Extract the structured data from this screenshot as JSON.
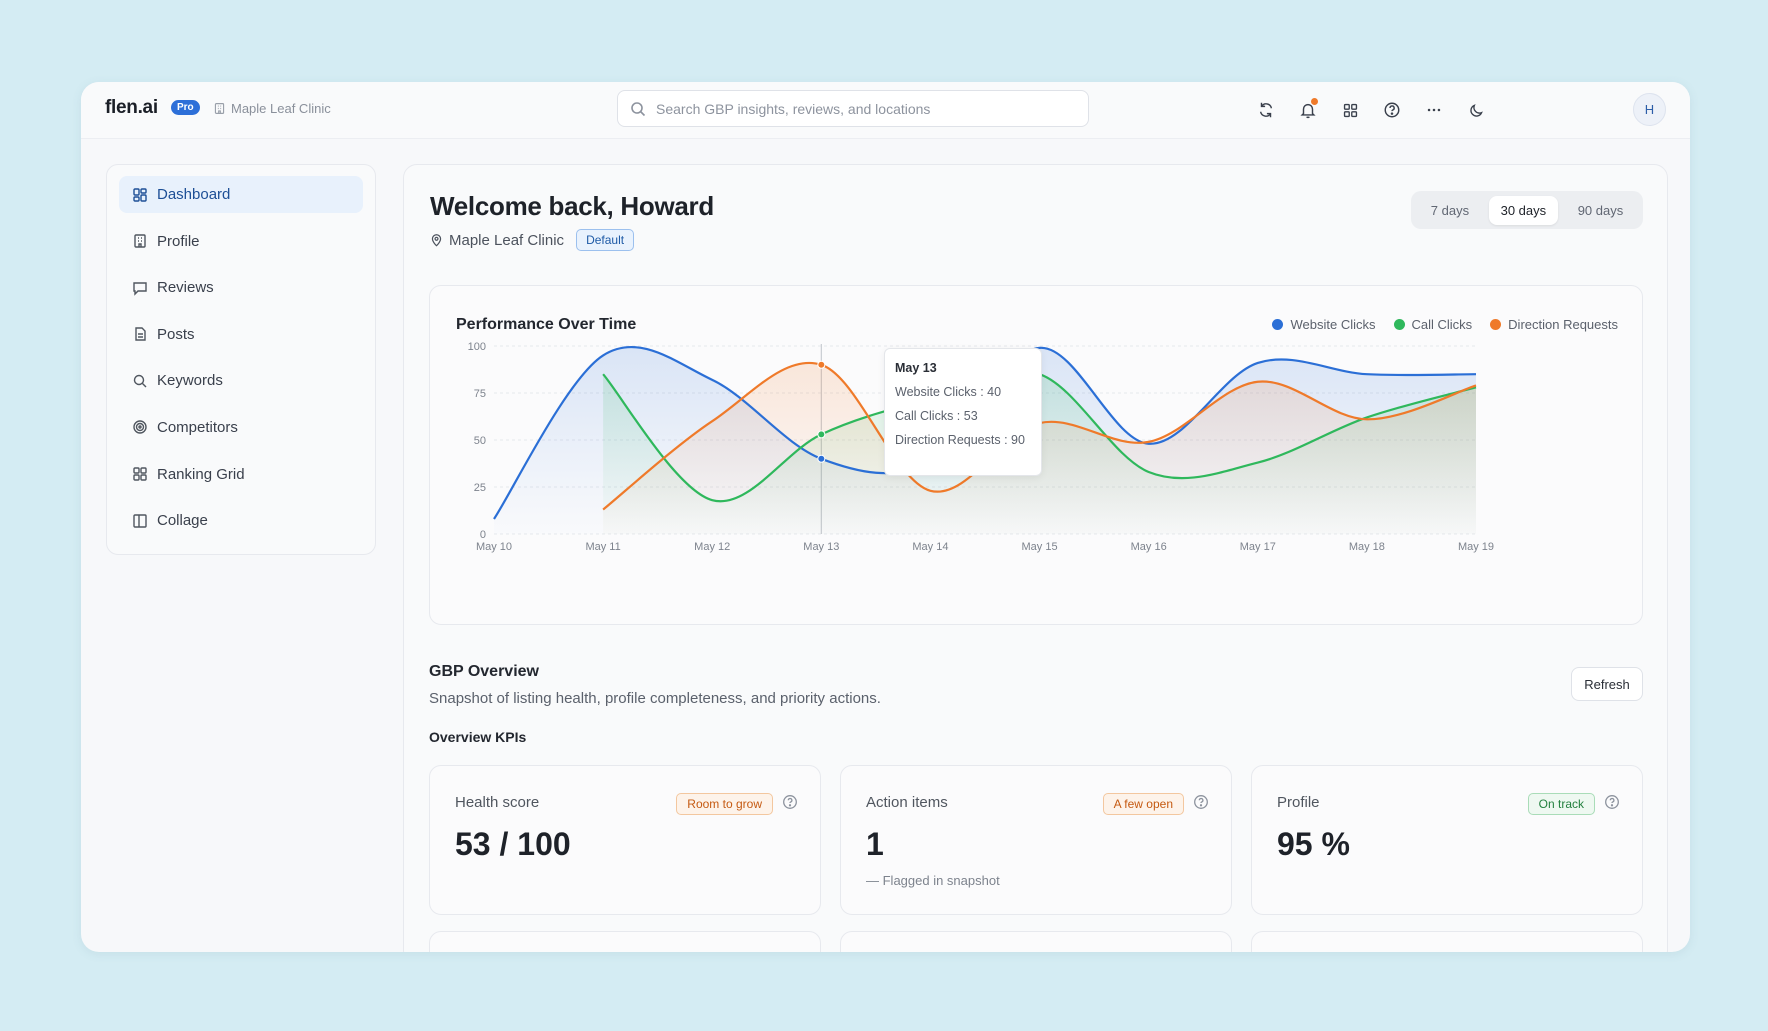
{
  "topbar": {
    "logo": "flen.ai",
    "plan_badge": "Pro",
    "org_name": "Maple Leaf Clinic",
    "search_placeholder": "Search GBP insights, reviews, and locations",
    "avatar_initial": "H",
    "icons": [
      "refresh-icon",
      "bell-icon",
      "grid-icon",
      "help-icon",
      "more-icon",
      "moon-icon"
    ]
  },
  "sidebar": {
    "items": [
      {
        "label": "Dashboard",
        "icon": "dashboard-icon",
        "active": true
      },
      {
        "label": "Profile",
        "icon": "building-icon"
      },
      {
        "label": "Reviews",
        "icon": "message-icon"
      },
      {
        "label": "Posts",
        "icon": "document-icon"
      },
      {
        "label": "Keywords",
        "icon": "search-icon"
      },
      {
        "label": "Competitors",
        "icon": "target-icon"
      },
      {
        "label": "Ranking Grid",
        "icon": "grid-icon"
      },
      {
        "label": "Collage",
        "icon": "columns-icon"
      }
    ]
  },
  "header": {
    "welcome": "Welcome back, Howard",
    "location": "Maple Leaf Clinic",
    "location_badge": "Default",
    "ranges": [
      "7 days",
      "30 days",
      "90 days"
    ],
    "selected_range": "30 days"
  },
  "chart_data": {
    "type": "area",
    "title": "Performance Over Time",
    "x": [
      "May 10",
      "May 11",
      "May 12",
      "May 13",
      "May 14",
      "May 15",
      "May 16",
      "May 17",
      "May 18",
      "May 19"
    ],
    "ylim": [
      0,
      100
    ],
    "yticks": [
      0,
      25,
      50,
      75,
      100
    ],
    "grid": true,
    "legend_position": "top-right",
    "series": [
      {
        "name": "Website Clicks",
        "color": "#2b6fd6",
        "values": [
          8,
          95,
          82,
          40,
          38,
          99,
          48,
          91,
          85,
          85
        ]
      },
      {
        "name": "Call Clicks",
        "color": "#2fb85c",
        "values": [
          null,
          85,
          18,
          53,
          72,
          85,
          33,
          38,
          62,
          78
        ]
      },
      {
        "name": "Direction Requests",
        "color": "#ef7a2a",
        "values": [
          null,
          13,
          60,
          90,
          23,
          59,
          49,
          81,
          61,
          79
        ]
      }
    ],
    "tooltip": {
      "title": "May 13",
      "lines": [
        "Website Clicks : 40",
        "Call Clicks : 53",
        "Direction Requests : 90"
      ]
    }
  },
  "overview": {
    "title": "GBP Overview",
    "subtitle": "Snapshot of listing health, profile completeness, and priority actions.",
    "refresh_label": "Refresh",
    "kpi_heading": "Overview KPIs",
    "kpis": [
      {
        "label": "Health score",
        "value": "53 / 100",
        "badge": "Room to grow",
        "badge_color": "orange",
        "note": ""
      },
      {
        "label": "Action items",
        "value": "1",
        "badge": "A few open",
        "badge_color": "orange",
        "note": "— Flagged in snapshot"
      },
      {
        "label": "Profile",
        "value": "95 %",
        "badge": "On track",
        "badge_color": "green",
        "note": ""
      }
    ]
  }
}
